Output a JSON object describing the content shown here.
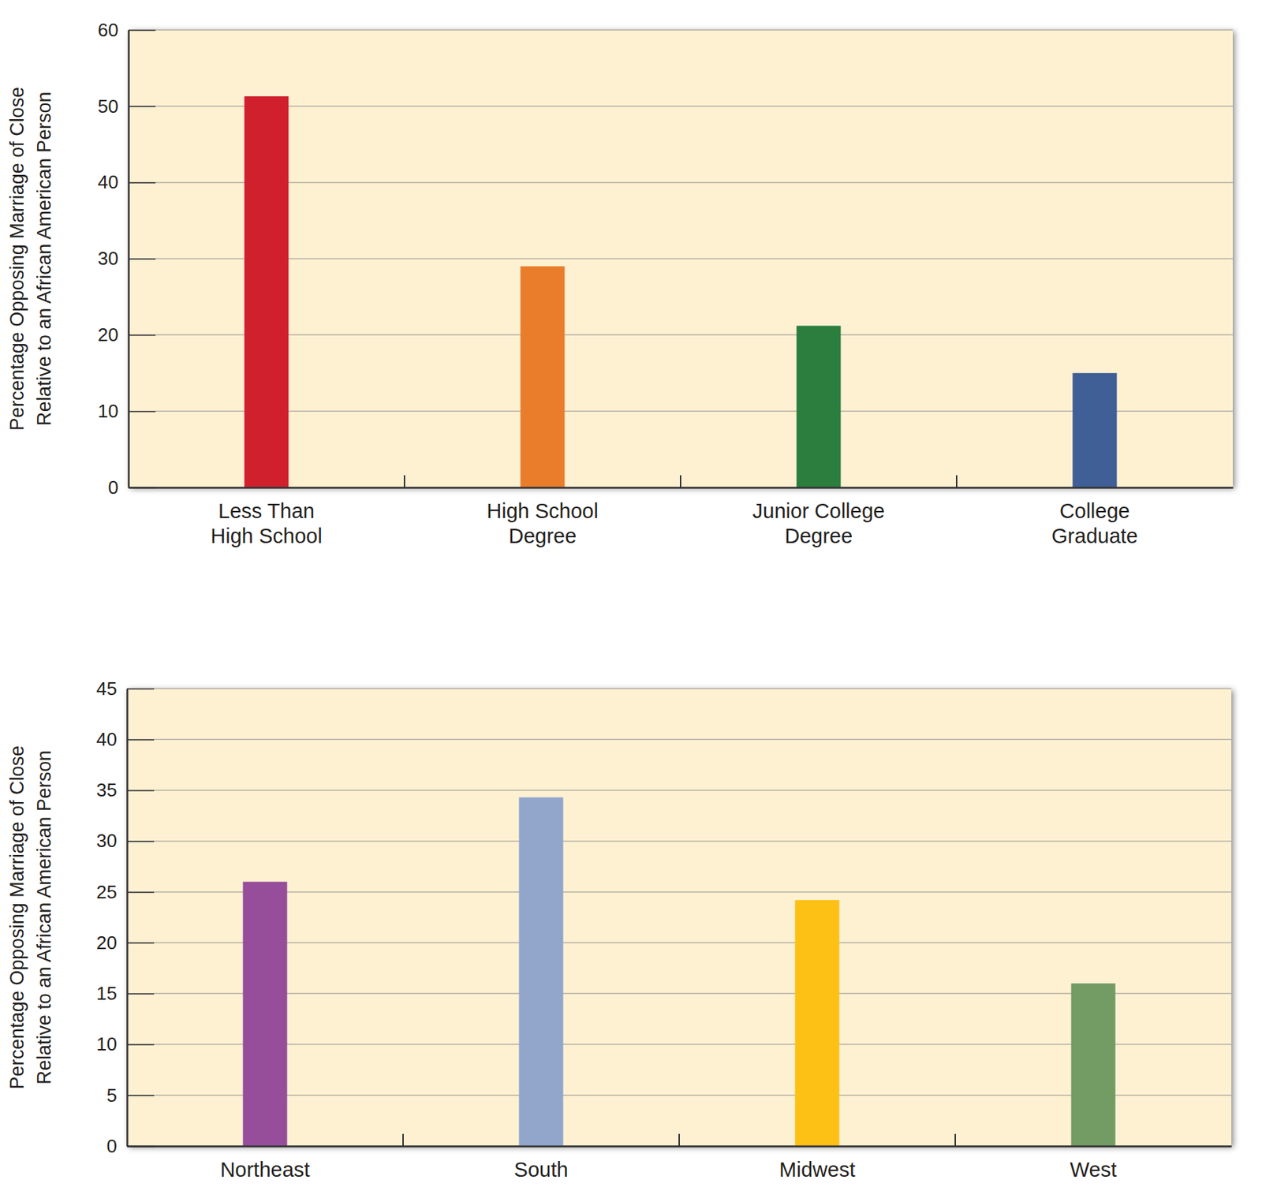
{
  "chart_data": [
    {
      "type": "bar",
      "ylabel": [
        "Percentage Opposing Marriage of Close",
        "Relative to an African American Person"
      ],
      "categories": [
        "Less Than High School",
        "High School Degree",
        "Junior College Degree",
        "College Graduate"
      ],
      "values": [
        51.3,
        29,
        21.2,
        15
      ],
      "colors": [
        "#d0202e",
        "#e97d2b",
        "#2b7e3e",
        "#3f5f96"
      ],
      "ylim": [
        0,
        60
      ],
      "yticks": [
        0,
        10,
        20,
        30,
        40,
        50,
        60
      ],
      "grid": true
    },
    {
      "type": "bar",
      "ylabel": [
        "Percentage Opposing Marriage of Close",
        "Relative to an African American Person"
      ],
      "categories": [
        "Northeast",
        "South",
        "Midwest",
        "West"
      ],
      "values": [
        26,
        34.3,
        24.2,
        16
      ],
      "colors": [
        "#964d9a",
        "#92a6cc",
        "#fdc014",
        "#739b64"
      ],
      "ylim": [
        0,
        45
      ],
      "yticks": [
        0,
        5,
        10,
        15,
        20,
        25,
        30,
        35,
        40,
        45
      ],
      "grid": true
    }
  ]
}
